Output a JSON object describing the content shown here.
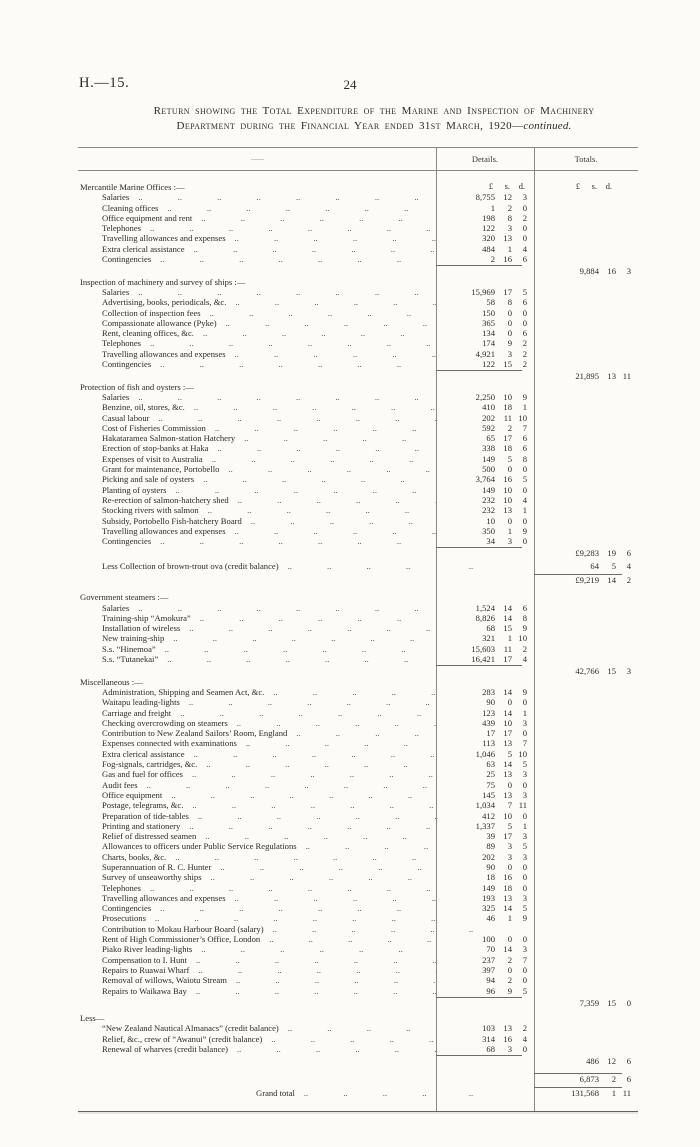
{
  "colors": {
    "paper": "#fcfbf7",
    "ink": "#2d2a24",
    "rule": "#8a897f"
  },
  "page": {
    "doc_ref": "H.—15.",
    "page_number": "24"
  },
  "title": {
    "line1": "Return showing the Total Expenditure of the Marine and Inspection of Machinery",
    "line2_prefix": "Department during the Financial Year ended 31st March, 1920—",
    "continued": "continued."
  },
  "table": {
    "col_headers": {
      "dash": "——",
      "details": "Details.",
      "totals": "Totals."
    },
    "currency_header": {
      "pounds": "£",
      "shillings": "s.",
      "pence": "d."
    },
    "rows": [
      {
        "t": "sec",
        "l": "Mercantile Marine Offices :—",
        "cur": 1
      },
      {
        "t": "item",
        "l": "Salaries",
        "d": [
          "8,755",
          "12",
          "3"
        ]
      },
      {
        "t": "item",
        "l": "Cleaning offices",
        "d": [
          "1",
          "2",
          "0"
        ]
      },
      {
        "t": "item",
        "l": "Office equipment and rent",
        "d": [
          "198",
          "8",
          "2"
        ]
      },
      {
        "t": "item",
        "l": "Telephones",
        "d": [
          "122",
          "3",
          "0"
        ]
      },
      {
        "t": "item",
        "l": "Travelling allowances and expenses",
        "d": [
          "320",
          "13",
          "0"
        ]
      },
      {
        "t": "item",
        "l": "Extra clerical assistance",
        "d": [
          "484",
          "1",
          "4"
        ]
      },
      {
        "t": "item",
        "l": "Contingencies",
        "d": [
          "2",
          "16",
          "6"
        ]
      },
      {
        "t": "rule",
        "c": "d"
      },
      {
        "t": "tot",
        "v": [
          "9,884",
          "16",
          "3"
        ]
      },
      {
        "t": "sec",
        "l": "Inspection of machinery and survey of ships :—"
      },
      {
        "t": "item",
        "l": "Salaries",
        "d": [
          "15,969",
          "17",
          "5"
        ]
      },
      {
        "t": "item",
        "l": "Advertising, books, periodicals, &c.",
        "d": [
          "58",
          "8",
          "6"
        ]
      },
      {
        "t": "item",
        "l": "Collection of inspection fees",
        "d": [
          "150",
          "0",
          "0"
        ]
      },
      {
        "t": "item",
        "l": "Compassionate allowance (Pyke)",
        "d": [
          "365",
          "0",
          "0"
        ]
      },
      {
        "t": "item",
        "l": "Rent, cleaning offices, &c.",
        "d": [
          "134",
          "0",
          "6"
        ]
      },
      {
        "t": "item",
        "l": "Telephones",
        "d": [
          "174",
          "9",
          "2"
        ]
      },
      {
        "t": "item",
        "l": "Travelling allowances and expenses",
        "d": [
          "4,921",
          "3",
          "2"
        ]
      },
      {
        "t": "item",
        "l": "Contingencies",
        "d": [
          "122",
          "15",
          "2"
        ]
      },
      {
        "t": "rule",
        "c": "d"
      },
      {
        "t": "tot",
        "v": [
          "21,895",
          "13",
          "11"
        ]
      },
      {
        "t": "sec",
        "l": "Protection of fish and oysters :—"
      },
      {
        "t": "item",
        "l": "Salaries",
        "d": [
          "2,250",
          "10",
          "9"
        ]
      },
      {
        "t": "item",
        "l": "Benzine, oil, stores, &c.",
        "d": [
          "410",
          "18",
          "1"
        ]
      },
      {
        "t": "item",
        "l": "Casual labour",
        "d": [
          "202",
          "11",
          "10"
        ]
      },
      {
        "t": "item",
        "l": "Cost of Fisheries Commission",
        "d": [
          "592",
          "2",
          "7"
        ]
      },
      {
        "t": "item",
        "l": "Hakataramea Salmon-station Hatchery",
        "d": [
          "65",
          "17",
          "6"
        ]
      },
      {
        "t": "item",
        "l": "Erection of stop-banks at Haka",
        "d": [
          "338",
          "18",
          "6"
        ]
      },
      {
        "t": "item",
        "l": "Expenses of visit to Australia",
        "d": [
          "149",
          "5",
          "8"
        ]
      },
      {
        "t": "item",
        "l": "Grant for maintenance, Portobello",
        "d": [
          "500",
          "0",
          "0"
        ]
      },
      {
        "t": "item",
        "l": "Picking and sale of oysters",
        "d": [
          "3,764",
          "16",
          "5"
        ]
      },
      {
        "t": "item",
        "l": "Planting of oysters",
        "d": [
          "149",
          "10",
          "0"
        ]
      },
      {
        "t": "item",
        "l": "Re-erection of salmon-hatchery shed",
        "d": [
          "232",
          "10",
          "4"
        ]
      },
      {
        "t": "item",
        "l": "Stocking rivers with salmon",
        "d": [
          "232",
          "13",
          "1"
        ]
      },
      {
        "t": "item",
        "l": "Subsidy, Portobello Fish-hatchery Board",
        "d": [
          "10",
          "0",
          "0"
        ]
      },
      {
        "t": "item",
        "l": "Travelling allowances and expenses",
        "d": [
          "350",
          "1",
          "9"
        ]
      },
      {
        "t": "item",
        "l": "Contingencies",
        "d": [
          "34",
          "3",
          "0"
        ]
      },
      {
        "t": "rule",
        "c": "d"
      },
      {
        "t": "tot",
        "v": [
          "£9,283",
          "19",
          "6"
        ]
      },
      {
        "t": "itot",
        "l": "Less Collection of brown-trout ova (credit balance)",
        "v": [
          "64",
          "5",
          "4"
        ],
        "mt": 2
      },
      {
        "t": "rule",
        "c": "t",
        "mt": 2
      },
      {
        "t": "tot",
        "v": [
          "£9,219",
          "14",
          "2"
        ]
      },
      {
        "t": "sec",
        "l": "Government steamers :—",
        "mt": 7
      },
      {
        "t": "item",
        "l": "Salaries",
        "d": [
          "1,524",
          "14",
          "6"
        ]
      },
      {
        "t": "item",
        "l": "Training-ship “Amokura”",
        "d": [
          "8,826",
          "14",
          "8"
        ]
      },
      {
        "t": "item",
        "l": "Installation of wireless",
        "d": [
          "68",
          "15",
          "9"
        ]
      },
      {
        "t": "item",
        "l": "New training-ship",
        "d": [
          "321",
          "1",
          "10"
        ]
      },
      {
        "t": "item",
        "l": "S.s. “Hinemoa”",
        "d": [
          "15,603",
          "11",
          "2"
        ]
      },
      {
        "t": "item",
        "l": "S.s. “Tutanekai”",
        "d": [
          "16,421",
          "17",
          "4"
        ]
      },
      {
        "t": "rule",
        "c": "d"
      },
      {
        "t": "tot",
        "v": [
          "42,766",
          "15",
          "3"
        ]
      },
      {
        "t": "sec",
        "l": "Miscellaneous :—"
      },
      {
        "t": "item",
        "l": "Administration, Shipping and Seamen Act, &c.",
        "d": [
          "283",
          "14",
          "9"
        ]
      },
      {
        "t": "item",
        "l": "Waitapu leading-lights",
        "d": [
          "90",
          "0",
          "0"
        ]
      },
      {
        "t": "item",
        "l": "Carriage and freight",
        "d": [
          "123",
          "14",
          "1"
        ]
      },
      {
        "t": "item",
        "l": "Checking overcrowding on steamers",
        "d": [
          "439",
          "10",
          "3"
        ]
      },
      {
        "t": "item",
        "l": "Contribution to New Zealand Sailors’ Room, England",
        "d": [
          "17",
          "17",
          "0"
        ]
      },
      {
        "t": "item",
        "l": "Expenses connected with examinations",
        "d": [
          "113",
          "13",
          "7"
        ]
      },
      {
        "t": "item",
        "l": "Extra clerical assistance",
        "d": [
          "1,046",
          "5",
          "10"
        ]
      },
      {
        "t": "item",
        "l": "Fog-signals, cartridges, &c.",
        "d": [
          "63",
          "14",
          "5"
        ]
      },
      {
        "t": "item",
        "l": "Gas and fuel for offices",
        "d": [
          "25",
          "13",
          "3"
        ]
      },
      {
        "t": "item",
        "l": "Audit fees",
        "d": [
          "75",
          "0",
          "0"
        ]
      },
      {
        "t": "item",
        "l": "Office equipment",
        "d": [
          "145",
          "13",
          "3"
        ]
      },
      {
        "t": "item",
        "l": "Postage, telegrams, &c.",
        "d": [
          "1,034",
          "7",
          "11"
        ]
      },
      {
        "t": "item",
        "l": "Preparation of tide-tables",
        "d": [
          "412",
          "10",
          "0"
        ]
      },
      {
        "t": "item",
        "l": "Printing and stationery",
        "d": [
          "1,337",
          "5",
          "1"
        ]
      },
      {
        "t": "item",
        "l": "Relief of distressed seamen",
        "d": [
          "39",
          "17",
          "3"
        ]
      },
      {
        "t": "item",
        "l": "Allowances to officers under Public Service Regulations",
        "d": [
          "89",
          "3",
          "5"
        ]
      },
      {
        "t": "item",
        "l": "Charts, books, &c.",
        "d": [
          "202",
          "3",
          "3"
        ]
      },
      {
        "t": "item",
        "l": "Superannuation of R. C. Hunter",
        "d": [
          "90",
          "0",
          "0"
        ]
      },
      {
        "t": "item",
        "l": "Survey of unseaworthy ships",
        "d": [
          "18",
          "16",
          "0"
        ]
      },
      {
        "t": "item",
        "l": "Telephones",
        "d": [
          "149",
          "18",
          "0"
        ]
      },
      {
        "t": "item",
        "l": "Travelling allowances and expenses",
        "d": [
          "193",
          "13",
          "3"
        ]
      },
      {
        "t": "item",
        "l": "Contingencies",
        "d": [
          "325",
          "14",
          "5"
        ]
      },
      {
        "t": "item",
        "l": "Prosecutions",
        "d": [
          "46",
          "1",
          "9"
        ]
      },
      {
        "t": "item",
        "l": "Contribution to Mokau Harbour Board (salary)",
        "dots": 1
      },
      {
        "t": "item",
        "l": "Rent of High Commissioner’s Office, London",
        "d": [
          "100",
          "0",
          "0"
        ]
      },
      {
        "t": "item",
        "l": "Piako River leading-lights",
        "d": [
          "70",
          "14",
          "3"
        ]
      },
      {
        "t": "item",
        "l": "Compensation to I. Hunt",
        "d": [
          "237",
          "2",
          "7"
        ]
      },
      {
        "t": "item",
        "l": "Repairs to Ruawai Wharf",
        "d": [
          "397",
          "0",
          "0"
        ]
      },
      {
        "t": "item",
        "l": "Removal of willows, Waiotu Stream",
        "d": [
          "94",
          "2",
          "0"
        ]
      },
      {
        "t": "item",
        "l": "Repairs to Waikawa Bay",
        "d": [
          "96",
          "9",
          "5"
        ]
      },
      {
        "t": "rule",
        "c": "d"
      },
      {
        "t": "tot",
        "v": [
          "7,359",
          "15",
          "0"
        ]
      },
      {
        "t": "less",
        "l": "Less—",
        "mt": 5
      },
      {
        "t": "item",
        "l": "“New Zealand Nautical Almanacs” (credit balance)",
        "d": [
          "103",
          "13",
          "2"
        ]
      },
      {
        "t": "item",
        "l": "Relief, &c., crew of “Awanui” (credit balance)",
        "d": [
          "314",
          "16",
          "4"
        ]
      },
      {
        "t": "item",
        "l": "Renewal of wharves (credit balance)",
        "d": [
          "68",
          "3",
          "0"
        ]
      },
      {
        "t": "rule",
        "c": "d"
      },
      {
        "t": "tot",
        "v": [
          "486",
          "12",
          "6"
        ]
      },
      {
        "t": "rule",
        "c": "t",
        "mt": 5
      },
      {
        "t": "tot",
        "v": [
          "6,873",
          "2",
          "6"
        ]
      },
      {
        "t": "rule",
        "c": "t",
        "mt": 2
      },
      {
        "t": "grand",
        "l": "Grand total",
        "v": [
          "131,568",
          "1",
          "11"
        ]
      }
    ]
  }
}
